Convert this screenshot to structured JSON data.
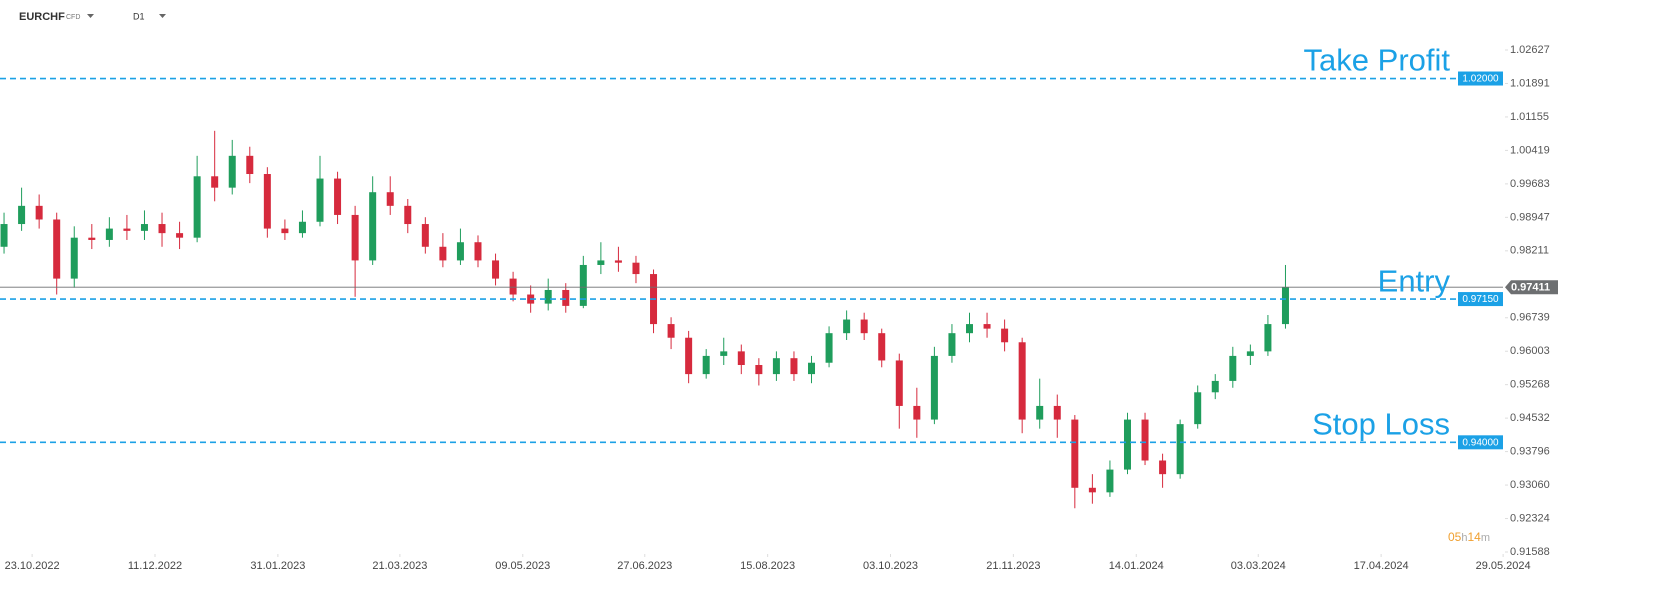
{
  "header": {
    "symbol": "EURCHF",
    "instrument": "CFD",
    "interval": "D1"
  },
  "chart_data": {
    "type": "candlestick",
    "up_color": "#1f9d5c",
    "down_color": "#d62a3d",
    "open": [
      0.983,
      0.988,
      0.992,
      0.989,
      0.976,
      0.985,
      0.9845,
      0.987,
      0.9865,
      0.988,
      0.986,
      0.985,
      0.9985,
      0.996,
      1.003,
      0.999,
      0.987,
      0.986,
      0.9885,
      0.998,
      0.99,
      0.98,
      0.995,
      0.992,
      0.988,
      0.983,
      0.98,
      0.984,
      0.98,
      0.976,
      0.9725,
      0.9705,
      0.9735,
      0.97,
      0.979,
      0.98,
      0.9795,
      0.977,
      0.966,
      0.963,
      0.955,
      0.959,
      0.96,
      0.957,
      0.955,
      0.9585,
      0.955,
      0.9575,
      0.964,
      0.967,
      0.964,
      0.958,
      0.948,
      0.945,
      0.959,
      0.964,
      0.966,
      0.965,
      0.962,
      0.945,
      0.948,
      0.945,
      0.93,
      0.929,
      0.934,
      0.945,
      0.936,
      0.933,
      0.944,
      0.951,
      0.9535,
      0.959,
      0.96,
      0.966
    ],
    "high": [
      0.9905,
      0.996,
      0.9945,
      0.9905,
      0.9875,
      0.988,
      0.9895,
      0.99,
      0.991,
      0.9905,
      0.9885,
      1.003,
      1.0085,
      1.0065,
      1.005,
      1.0005,
      0.989,
      0.991,
      1.003,
      0.9995,
      0.992,
      0.9985,
      0.9985,
      0.9935,
      0.9895,
      0.986,
      0.987,
      0.9855,
      0.9815,
      0.9775,
      0.9745,
      0.976,
      0.975,
      0.981,
      0.984,
      0.983,
      0.981,
      0.978,
      0.9675,
      0.9645,
      0.9605,
      0.963,
      0.9615,
      0.9585,
      0.96,
      0.96,
      0.959,
      0.9655,
      0.969,
      0.9685,
      0.965,
      0.9595,
      0.952,
      0.961,
      0.966,
      0.9685,
      0.9685,
      0.967,
      0.963,
      0.954,
      0.9505,
      0.946,
      0.933,
      0.936,
      0.9465,
      0.9465,
      0.9375,
      0.945,
      0.9525,
      0.955,
      0.961,
      0.9615,
      0.968,
      0.979
    ],
    "low": [
      0.9815,
      0.9865,
      0.987,
      0.9725,
      0.974,
      0.9825,
      0.983,
      0.9845,
      0.9845,
      0.983,
      0.9825,
      0.984,
      0.993,
      0.9945,
      0.997,
      0.985,
      0.9845,
      0.985,
      0.9875,
      0.988,
      0.972,
      0.979,
      0.99,
      0.986,
      0.9815,
      0.9785,
      0.979,
      0.9785,
      0.9745,
      0.971,
      0.9685,
      0.969,
      0.9685,
      0.9695,
      0.977,
      0.9775,
      0.975,
      0.964,
      0.9605,
      0.953,
      0.954,
      0.957,
      0.955,
      0.9525,
      0.9535,
      0.9535,
      0.953,
      0.9565,
      0.9625,
      0.9625,
      0.9565,
      0.943,
      0.941,
      0.944,
      0.9575,
      0.962,
      0.963,
      0.96,
      0.942,
      0.943,
      0.941,
      0.9255,
      0.9265,
      0.928,
      0.933,
      0.935,
      0.93,
      0.932,
      0.943,
      0.9495,
      0.952,
      0.957,
      0.959,
      0.965
    ],
    "close": [
      0.988,
      0.992,
      0.989,
      0.976,
      0.985,
      0.9845,
      0.987,
      0.9865,
      0.988,
      0.986,
      0.985,
      0.9985,
      0.996,
      1.003,
      0.999,
      0.987,
      0.986,
      0.9885,
      0.998,
      0.99,
      0.98,
      0.995,
      0.992,
      0.988,
      0.983,
      0.98,
      0.984,
      0.98,
      0.976,
      0.9725,
      0.9705,
      0.9735,
      0.97,
      0.979,
      0.98,
      0.9795,
      0.977,
      0.966,
      0.963,
      0.955,
      0.959,
      0.96,
      0.957,
      0.955,
      0.9585,
      0.955,
      0.9575,
      0.964,
      0.967,
      0.964,
      0.958,
      0.948,
      0.945,
      0.959,
      0.964,
      0.966,
      0.965,
      0.962,
      0.945,
      0.948,
      0.945,
      0.93,
      0.929,
      0.934,
      0.945,
      0.936,
      0.933,
      0.944,
      0.951,
      0.9535,
      0.959,
      0.96,
      0.966,
      0.9741
    ],
    "xlim": [
      -0.23,
      87.5
    ],
    "xticks": [
      {
        "value": 1.6,
        "label": "23.10.2022"
      },
      {
        "value": 8.6,
        "label": "11.12.2022"
      },
      {
        "value": 15.6,
        "label": "31.01.2023"
      },
      {
        "value": 22.55,
        "label": "21.03.2023"
      },
      {
        "value": 29.55,
        "label": "09.05.2023"
      },
      {
        "value": 36.5,
        "label": "27.06.2023"
      },
      {
        "value": 43.5,
        "label": "15.08.2023"
      },
      {
        "value": 50.5,
        "label": "03.10.2023"
      },
      {
        "value": 57.5,
        "label": "21.11.2023"
      },
      {
        "value": 64.5,
        "label": "14.01.2024"
      },
      {
        "value": 71.45,
        "label": "03.03.2024"
      },
      {
        "value": 78.45,
        "label": "17.04.2024"
      },
      {
        "value": 85.4,
        "label": "29.05.2024"
      }
    ],
    "ylim": [
      0.91588,
      1.02957
    ],
    "yticks": [
      1.02627,
      1.01891,
      1.01155,
      1.00419,
      0.99683,
      0.98947,
      0.98211,
      0.96739,
      0.96003,
      0.95268,
      0.94532,
      0.93796,
      {
        "value": 0.9306,
        "label": "0.93060"
      },
      0.92324,
      0.91588
    ],
    "levels": [
      {
        "name": "Take Profit",
        "value": 1.02,
        "label": "1.02000",
        "color": "#1ba1e6"
      },
      {
        "name": "Entry",
        "value": 0.9715,
        "label": "0.97150",
        "color": "#1ba1e6"
      },
      {
        "name": "Stop Loss",
        "value": 0.94,
        "label": "0.94000",
        "color": "#1ba1e6"
      }
    ],
    "last_price": 0.97411,
    "last_price_color": "#6d6f71",
    "timer": [
      "05",
      "h",
      "14",
      "m"
    ]
  }
}
